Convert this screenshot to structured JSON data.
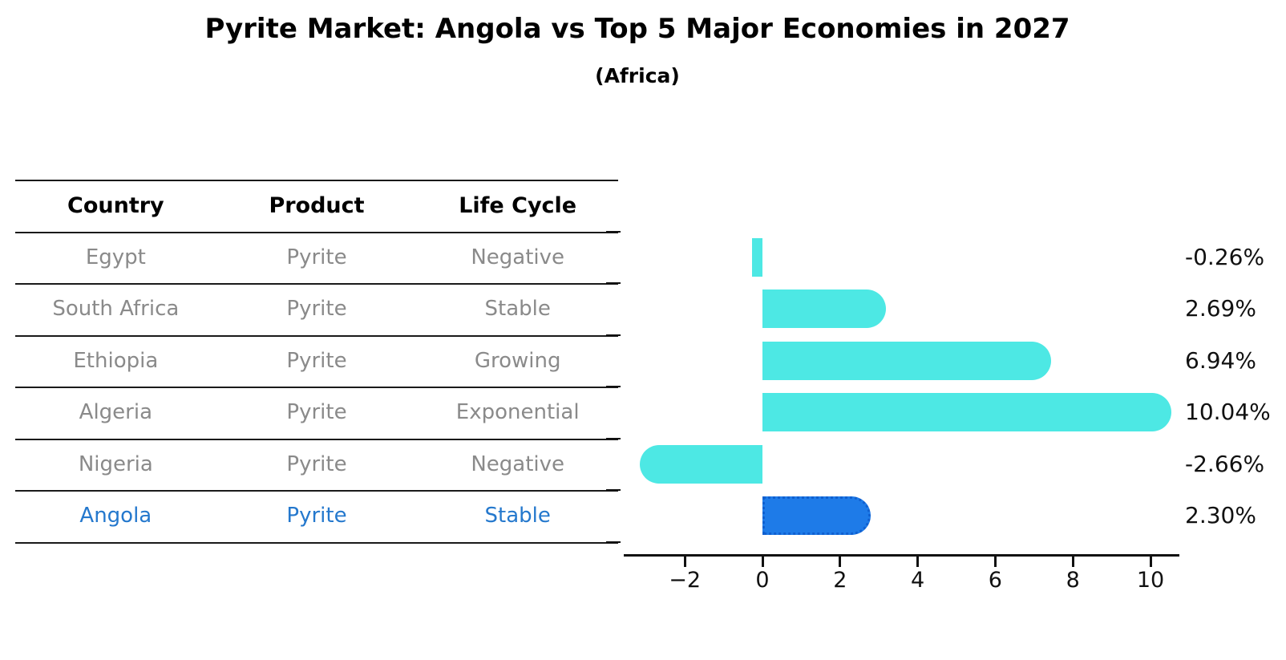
{
  "title": "Pyrite Market: Angola vs Top 5 Major Economies in 2027",
  "subtitle": "(Africa)",
  "table": {
    "headers": [
      "Country",
      "Product",
      "Life Cycle"
    ],
    "rows": [
      {
        "cells": [
          "Egypt",
          "Pyrite",
          "Negative"
        ],
        "highlight": false
      },
      {
        "cells": [
          "South Africa",
          "Pyrite",
          "Stable"
        ],
        "highlight": false
      },
      {
        "cells": [
          "Ethiopia",
          "Pyrite",
          "Growing"
        ],
        "highlight": false
      },
      {
        "cells": [
          "Algeria",
          "Pyrite",
          "Exponential"
        ],
        "highlight": false
      },
      {
        "cells": [
          "Nigeria",
          "Pyrite",
          "Negative"
        ],
        "highlight": false
      },
      {
        "cells": [
          "Angola",
          "Pyrite",
          "Stable"
        ],
        "highlight": true
      }
    ]
  },
  "chart_data": {
    "type": "bar",
    "orientation": "horizontal",
    "categories": [
      "Egypt",
      "South Africa",
      "Ethiopia",
      "Algeria",
      "Nigeria",
      "Angola"
    ],
    "values": [
      -0.26,
      2.69,
      6.94,
      10.04,
      -2.66,
      2.3
    ],
    "value_labels": [
      "-0.26%",
      "2.69%",
      "6.94%",
      "10.04%",
      "-2.66%",
      "2.30%"
    ],
    "highlight_category": "Angola",
    "x_ticks": [
      -2,
      0,
      2,
      4,
      6,
      8,
      10
    ],
    "x_tick_labels": [
      "−2",
      "0",
      "2",
      "4",
      "6",
      "8",
      "10"
    ],
    "xlim": [
      -3.57,
      10.74
    ],
    "grid": false,
    "legend": "none",
    "colors": {
      "bar": "#4DE8E4",
      "highlight_bar": "#1E7BE8",
      "highlight_bar_border": "#1060D0",
      "table_text": "#8A8A8A",
      "table_header_text": "#000000",
      "highlight_text": "#2478CD",
      "axis": "#111111",
      "label_text": "#111111"
    }
  }
}
